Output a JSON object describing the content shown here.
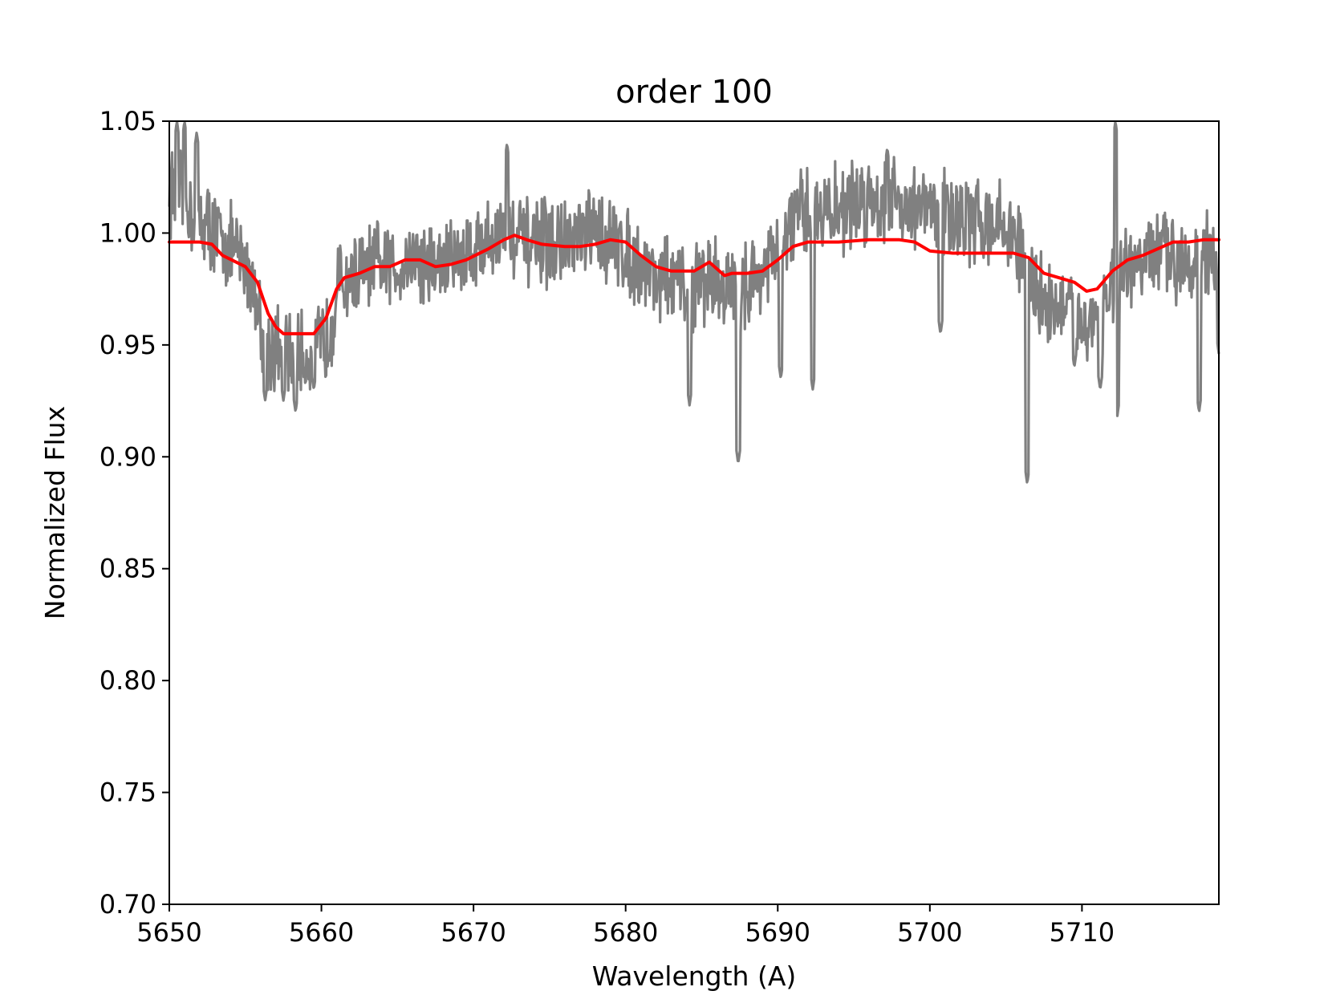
{
  "chart_data": {
    "type": "line",
    "title": "order 100",
    "xlabel": "Wavelength (A)",
    "ylabel": "Normalized Flux",
    "xlim": [
      5650,
      5719
    ],
    "ylim": [
      0.7,
      1.05
    ],
    "xticks": [
      "5650",
      "5660",
      "5670",
      "5680",
      "5690",
      "5700",
      "5710"
    ],
    "yticks": [
      "0.70",
      "0.75",
      "0.80",
      "0.85",
      "0.90",
      "0.95",
      "1.00",
      "1.05"
    ],
    "grid": false,
    "legend": "none",
    "series": [
      {
        "color": "#808080",
        "style": "noisy observed spectrum",
        "x": [
          5650.0,
          5651.5,
          5653.0,
          5654.5,
          5655.5,
          5656.0,
          5656.5,
          5657.5,
          5658.5,
          5659.5,
          5660.5,
          5661.0,
          5662.0,
          5663.5,
          5665.0,
          5666.0,
          5667.5,
          5669.0,
          5670.5,
          5672.0,
          5673.5,
          5675.0,
          5676.5,
          5678.0,
          5679.5,
          5681.0,
          5682.5,
          5684.0,
          5685.5,
          5687.0,
          5688.5,
          5690.0,
          5691.0,
          5692.5,
          5694.0,
          5696.0,
          5698.0,
          5699.5,
          5701.0,
          5702.5,
          5704.0,
          5705.5,
          5706.5,
          5707.5,
          5709.0,
          5710.5,
          5712.0,
          5713.5,
          5715.0,
          5716.5,
          5718.0,
          5719.0
        ],
        "y": [
          1.02,
          1.01,
          1.0,
          0.99,
          0.98,
          0.96,
          0.95,
          0.945,
          0.945,
          0.945,
          0.955,
          0.975,
          0.98,
          0.985,
          0.985,
          0.99,
          0.985,
          0.99,
          0.995,
          1.0,
          0.995,
          0.995,
          0.995,
          1.0,
          0.995,
          0.985,
          0.98,
          0.975,
          0.98,
          0.975,
          0.98,
          0.99,
          1.005,
          1.01,
          1.01,
          1.015,
          1.015,
          1.01,
          1.01,
          1.005,
          1.005,
          1.0,
          0.98,
          0.97,
          0.965,
          0.96,
          0.975,
          0.985,
          0.99,
          0.99,
          0.99,
          0.985
        ],
        "dips": [
          [
            5656.3,
            0.925
          ],
          [
            5657.5,
            0.925
          ],
          [
            5658.3,
            0.92
          ],
          [
            5659.5,
            0.93
          ],
          [
            5684.2,
            0.923
          ],
          [
            5687.4,
            0.897
          ],
          [
            5690.2,
            0.935
          ],
          [
            5692.3,
            0.93
          ],
          [
            5700.7,
            0.955
          ],
          [
            5706.4,
            0.888
          ],
          [
            5709.5,
            0.94
          ],
          [
            5711.2,
            0.93
          ],
          [
            5712.3,
            0.917
          ],
          [
            5717.7,
            0.92
          ],
          [
            5719.0,
            0.946
          ]
        ],
        "spikes": [
          [
            5650.5,
            1.05
          ],
          [
            5651.0,
            1.05
          ],
          [
            5651.8,
            1.045
          ],
          [
            5672.2,
            1.04
          ],
          [
            5697.2,
            1.038
          ],
          [
            5712.2,
            1.05
          ]
        ]
      },
      {
        "color": "#ff0000",
        "style": "smooth model fit",
        "x": [
          5650.0,
          5652.0,
          5652.8,
          5653.5,
          5655.0,
          5655.8,
          5656.5,
          5657.0,
          5657.5,
          5658.5,
          5659.5,
          5660.3,
          5661.0,
          5661.5,
          5662.5,
          5663.5,
          5664.5,
          5665.5,
          5666.5,
          5667.5,
          5668.5,
          5669.5,
          5671.0,
          5672.0,
          5672.7,
          5673.5,
          5674.5,
          5676.0,
          5677.0,
          5678.0,
          5679.0,
          5680.0,
          5681.0,
          5682.0,
          5683.0,
          5684.0,
          5684.5,
          5685.0,
          5685.5,
          5686.0,
          5686.5,
          5687.0,
          5688.0,
          5689.0,
          5690.0,
          5691.0,
          5692.0,
          5693.0,
          5694.0,
          5696.0,
          5698.0,
          5699.0,
          5700.0,
          5701.5,
          5703.0,
          5704.5,
          5705.5,
          5706.5,
          5707.5,
          5708.5,
          5709.5,
          5710.3,
          5711.0,
          5712.0,
          5713.0,
          5714.0,
          5715.0,
          5716.0,
          5717.0,
          5718.0,
          5719.0
        ],
        "y": [
          0.996,
          0.996,
          0.995,
          0.99,
          0.985,
          0.978,
          0.964,
          0.958,
          0.955,
          0.955,
          0.955,
          0.962,
          0.975,
          0.98,
          0.982,
          0.985,
          0.985,
          0.988,
          0.988,
          0.985,
          0.986,
          0.988,
          0.993,
          0.997,
          0.999,
          0.997,
          0.995,
          0.994,
          0.994,
          0.995,
          0.997,
          0.996,
          0.99,
          0.985,
          0.983,
          0.983,
          0.983,
          0.985,
          0.987,
          0.984,
          0.981,
          0.982,
          0.982,
          0.983,
          0.988,
          0.994,
          0.996,
          0.996,
          0.996,
          0.997,
          0.997,
          0.996,
          0.992,
          0.991,
          0.991,
          0.991,
          0.991,
          0.989,
          0.982,
          0.98,
          0.978,
          0.974,
          0.975,
          0.983,
          0.988,
          0.99,
          0.993,
          0.996,
          0.996,
          0.997,
          0.997
        ]
      }
    ]
  }
}
